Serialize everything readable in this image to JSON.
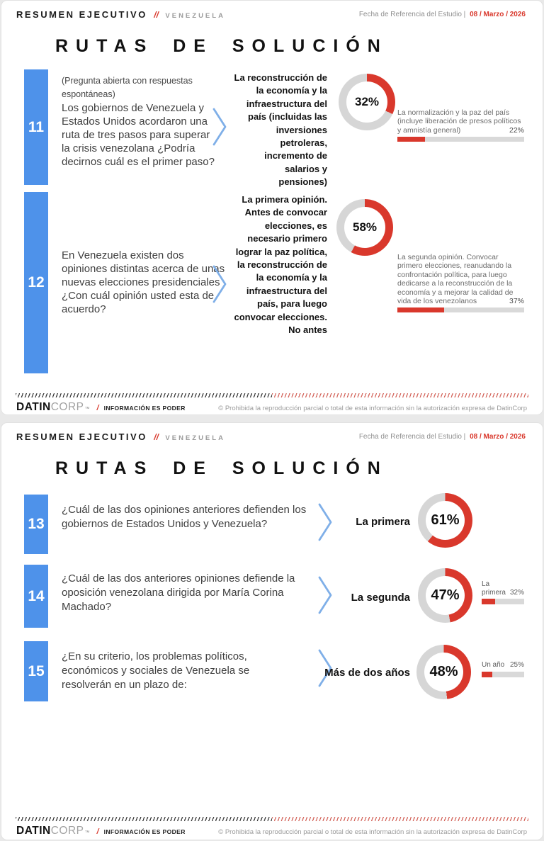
{
  "page": {
    "header": {
      "title": "RESUMEN EJECUTIVO",
      "separator": "//",
      "region": "VENEZUELA",
      "date_label": "Fecha de Referencia del Estudio |",
      "date_value": "08 / Marzo / 2026"
    },
    "section_title": "RUTAS DE SOLUCIÓN",
    "footer": {
      "brand_datin": "DATIN",
      "brand_corp": "CORP",
      "brand_tm": "™",
      "brand_slash": "/",
      "tagline": "INFORMACIÓN ES PODER",
      "copyright": "© Prohibida la reproducción parcial o total de esta información sin la autorización expresa de DatinCorp"
    }
  },
  "colors": {
    "accent_red": "#d9382c",
    "accent_blue": "#4e92ea",
    "donut_track": "#d6d6d6",
    "bar_track": "#d9d9d9"
  },
  "slide1": {
    "questions": [
      {
        "number": "11",
        "note": "(Pregunta abierta con respuestas espontáneas)",
        "question": "Los gobiernos de Venezuela y Estados Unidos acordaron una ruta de tres pasos para superar la crisis venezolana ¿Podría decirnos cuál es el primer paso?",
        "answer": "La reconstrucción de la economía y la infraestructura del país (incluidas las inversiones petroleras, incremento de salarios y pensiones)",
        "donut_pct": 32,
        "donut_label": "32%",
        "secondary": {
          "text": "La normalización y la paz del país (incluye liberación de presos políticos y amnistía general)",
          "pct": 22,
          "pct_label": "22%"
        }
      },
      {
        "number": "12",
        "question": "En Venezuela existen dos opiniones distintas acerca de unas nuevas elecciones presidenciales ¿Con cuál opinión usted esta de acuerdo?",
        "answer": "La primera opinión. Antes de convocar elecciones, es necesario primero lograr la paz política, la reconstrucción de la economía y la infraestructura del país, para luego convocar elecciones. No antes",
        "donut_pct": 58,
        "donut_label": "58%",
        "secondary": {
          "text": "La segunda opinión. Convocar primero elecciones, reanudando la confrontación política, para luego dedicarse a la reconstrucción de la economía y a mejorar la calidad de vida de los venezolanos",
          "pct": 37,
          "pct_label": "37%"
        }
      }
    ]
  },
  "slide2": {
    "questions": [
      {
        "number": "13",
        "question": "¿Cuál de las dos opiniones anteriores defienden los gobiernos de Estados Unidos y Venezuela?",
        "answer": "La primera",
        "donut_pct": 61,
        "donut_label": "61%"
      },
      {
        "number": "14",
        "question": "¿Cuál de las dos anteriores opiniones defiende la oposición venezolana dirigida por María Corina Machado?",
        "answer": "La segunda",
        "donut_pct": 47,
        "donut_label": "47%",
        "secondary": {
          "label": "La primera",
          "pct": 32,
          "pct_label": "32%"
        }
      },
      {
        "number": "15",
        "question": "¿En su criterio, los problemas políticos, económicos y sociales de Venezuela se resolverán en un plazo de:",
        "answer": "Más de dos años",
        "donut_pct": 48,
        "donut_label": "48%",
        "secondary": {
          "label": "Un año",
          "pct": 25,
          "pct_label": "25%"
        }
      }
    ]
  },
  "chart_data": [
    {
      "type": "pie",
      "question_number": 11,
      "label": "La reconstrucción de la economía y la infraestructura del país (incluidas las inversiones petroleras, incremento de salarios y pensiones)",
      "value": 32,
      "remainder": 68,
      "bar": {
        "label": "La normalización y la paz del país (incluye liberación de presos políticos y amnistía general)",
        "value": 22,
        "max": 100
      }
    },
    {
      "type": "pie",
      "question_number": 12,
      "label": "La primera opinión. Antes de convocar elecciones, es necesario primero lograr la paz política, la reconstrucción de la economía y la infraestructura del país, para luego convocar elecciones. No antes",
      "value": 58,
      "remainder": 42,
      "bar": {
        "label": "La segunda opinión. Convocar primero elecciones, reanudando la confrontación política, para luego dedicarse a la reconstrucción de la economía y a mejorar la calidad de vida de los venezolanos",
        "value": 37,
        "max": 100
      }
    },
    {
      "type": "pie",
      "question_number": 13,
      "label": "La primera",
      "value": 61,
      "remainder": 39
    },
    {
      "type": "pie",
      "question_number": 14,
      "label": "La segunda",
      "value": 47,
      "remainder": 53,
      "bar": {
        "label": "La primera",
        "value": 32,
        "max": 100
      }
    },
    {
      "type": "pie",
      "question_number": 15,
      "label": "Más de dos años",
      "value": 48,
      "remainder": 52,
      "bar": {
        "label": "Un año",
        "value": 25,
        "max": 100
      }
    }
  ]
}
